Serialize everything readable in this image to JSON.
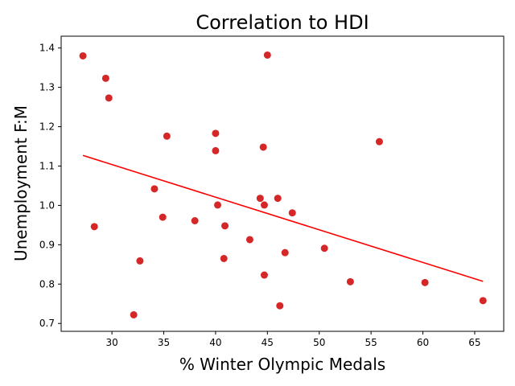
{
  "chart_data": {
    "type": "scatter",
    "title": "Correlation to HDI",
    "xlabel": "% Winter Olympic Medals",
    "ylabel": "Unemployment F:M",
    "xlim": [
      25.1,
      67.8
    ],
    "ylim": [
      0.68,
      1.43
    ],
    "xticks": [
      30,
      35,
      40,
      45,
      50,
      55,
      60,
      65
    ],
    "xtick_labels": [
      "30",
      "35",
      "40",
      "45",
      "50",
      "55",
      "60",
      "65"
    ],
    "yticks": [
      0.7,
      0.8,
      0.9,
      1.0,
      1.1,
      1.2,
      1.3,
      1.4
    ],
    "ytick_labels": [
      "0.7",
      "0.8",
      "0.9",
      "1.0",
      "1.1",
      "1.2",
      "1.3",
      "1.4"
    ],
    "grid": false,
    "marker_color": "#d62728",
    "trendline_color": "#ff0000",
    "points": [
      {
        "x": 27.2,
        "y": 1.38
      },
      {
        "x": 29.4,
        "y": 1.323
      },
      {
        "x": 29.7,
        "y": 1.273
      },
      {
        "x": 28.3,
        "y": 0.946
      },
      {
        "x": 32.1,
        "y": 0.722
      },
      {
        "x": 32.7,
        "y": 0.859
      },
      {
        "x": 34.1,
        "y": 1.042
      },
      {
        "x": 34.9,
        "y": 0.97
      },
      {
        "x": 35.3,
        "y": 1.176
      },
      {
        "x": 38.0,
        "y": 0.961
      },
      {
        "x": 40.0,
        "y": 1.183
      },
      {
        "x": 40.0,
        "y": 1.139
      },
      {
        "x": 40.2,
        "y": 1.001
      },
      {
        "x": 40.9,
        "y": 0.948
      },
      {
        "x": 40.8,
        "y": 0.865
      },
      {
        "x": 43.3,
        "y": 0.913
      },
      {
        "x": 44.3,
        "y": 1.018
      },
      {
        "x": 44.6,
        "y": 1.148
      },
      {
        "x": 44.7,
        "y": 1.001
      },
      {
        "x": 44.7,
        "y": 0.823
      },
      {
        "x": 45.0,
        "y": 1.382
      },
      {
        "x": 46.0,
        "y": 1.018
      },
      {
        "x": 46.2,
        "y": 0.745
      },
      {
        "x": 46.7,
        "y": 0.88
      },
      {
        "x": 47.4,
        "y": 0.981
      },
      {
        "x": 50.5,
        "y": 0.891
      },
      {
        "x": 53.0,
        "y": 0.806
      },
      {
        "x": 55.8,
        "y": 1.162
      },
      {
        "x": 60.2,
        "y": 0.804
      },
      {
        "x": 65.8,
        "y": 0.758
      }
    ],
    "trendline": {
      "x": [
        27.2,
        65.8
      ],
      "y": [
        1.127,
        0.807
      ]
    }
  }
}
